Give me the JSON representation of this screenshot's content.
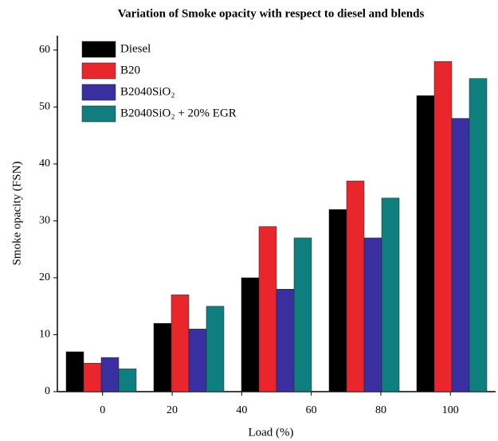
{
  "chart_data": {
    "type": "bar",
    "title": "Variation of Smoke opacity with respect to diesel and blends",
    "x_label": "Load (%)",
    "y_label": "Smoke opacity (FSN)",
    "categories": [
      null,
      null,
      null,
      null,
      null
    ],
    "xlim": [
      -13,
      113
    ],
    "xticks": [
      0,
      20,
      40,
      60,
      80,
      100
    ],
    "series": [
      {
        "name": "Diesel",
        "color": "#000000",
        "values": [
          7,
          12,
          20,
          32,
          52
        ]
      },
      {
        "name": "B20",
        "color": "#e8262b",
        "values": [
          5,
          17,
          29,
          37,
          58
        ]
      },
      {
        "name": "B2040SiO₂",
        "color": "#3a2fa0",
        "values": [
          6,
          11,
          18,
          27,
          48
        ]
      },
      {
        "name": "B2040SiO₂ + 20% EGR",
        "color": "#0e7e7e",
        "values": [
          4,
          15,
          27,
          34,
          55
        ]
      }
    ],
    "ylim": [
      0,
      62.5
    ],
    "yticks": [
      0,
      10,
      20,
      30,
      40,
      50,
      60
    ],
    "legend": "upper-left"
  }
}
